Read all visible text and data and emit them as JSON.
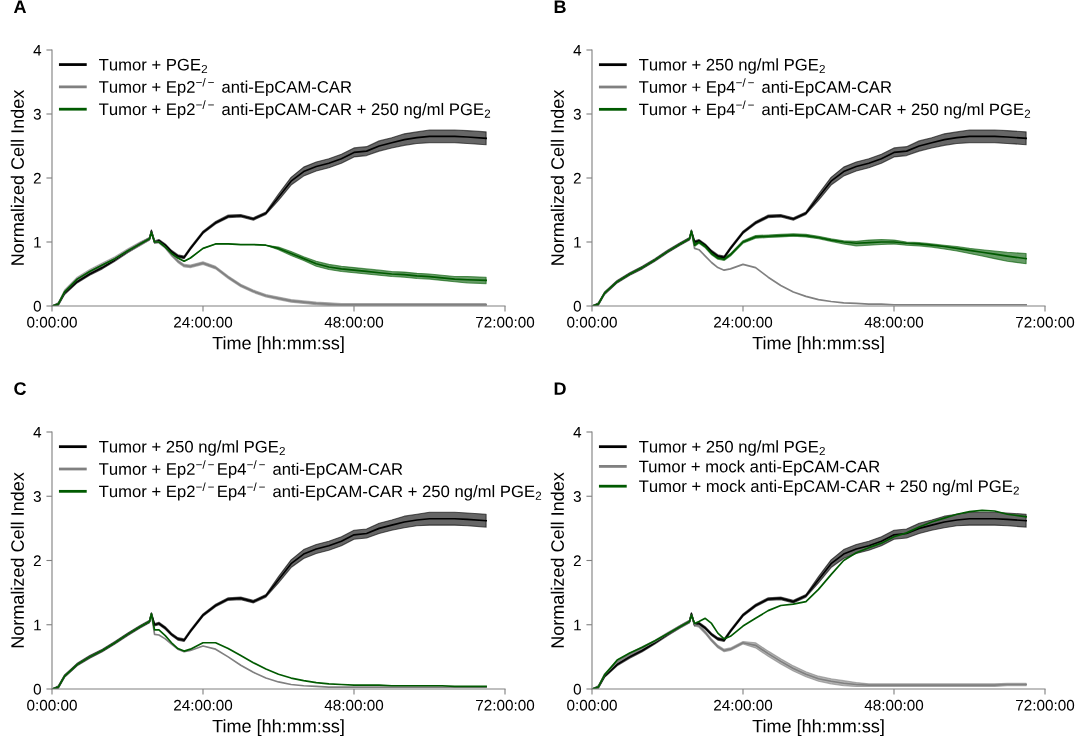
{
  "chart_data": [
    {
      "type": "line",
      "title": "A",
      "xlabel": "Time [hh:mm:ss]",
      "ylabel": "Normalized Cell Index",
      "legend": "top left",
      "x": [
        0,
        1,
        2,
        4,
        6,
        8,
        10,
        12,
        14,
        15.5,
        15.8,
        16.3,
        17,
        18,
        19,
        20,
        21,
        22,
        24,
        26,
        28,
        30,
        32,
        34,
        36,
        38,
        40,
        42,
        44,
        46,
        48,
        50,
        52,
        54,
        56,
        58,
        60,
        62,
        64,
        66,
        69
      ],
      "xlim": [
        0,
        72
      ],
      "xticks": [
        {
          "value": 0,
          "label": "0:00:00"
        },
        {
          "value": 24,
          "label": "24:00:00"
        },
        {
          "value": 48,
          "label": "48:00:00"
        },
        {
          "value": 72,
          "label": "72:00:00"
        }
      ],
      "ylim": [
        0,
        4
      ],
      "yticks": [
        0,
        1,
        2,
        3,
        4
      ],
      "series": [
        {
          "name": "Tumor + PGE$_{2}$",
          "color": "#000000",
          "values": [
            0,
            0.03,
            0.2,
            0.38,
            0.5,
            0.6,
            0.72,
            0.85,
            0.97,
            1.05,
            1.17,
            1.0,
            1.02,
            0.95,
            0.85,
            0.78,
            0.76,
            0.9,
            1.15,
            1.3,
            1.4,
            1.41,
            1.36,
            1.45,
            1.7,
            1.95,
            2.1,
            2.18,
            2.23,
            2.3,
            2.4,
            2.42,
            2.5,
            2.55,
            2.6,
            2.63,
            2.65,
            2.65,
            2.65,
            2.64,
            2.62
          ],
          "lower": [
            0,
            0.01,
            0.18,
            0.36,
            0.48,
            0.58,
            0.7,
            0.83,
            0.95,
            1.03,
            1.15,
            0.98,
            1.0,
            0.93,
            0.83,
            0.76,
            0.74,
            0.88,
            1.13,
            1.28,
            1.38,
            1.39,
            1.34,
            1.43,
            1.65,
            1.89,
            2.03,
            2.11,
            2.16,
            2.23,
            2.33,
            2.35,
            2.42,
            2.47,
            2.51,
            2.54,
            2.55,
            2.55,
            2.55,
            2.54,
            2.52
          ],
          "upper": [
            0,
            0.05,
            0.22,
            0.4,
            0.52,
            0.62,
            0.74,
            0.87,
            0.99,
            1.07,
            1.19,
            1.02,
            1.04,
            0.97,
            0.87,
            0.8,
            0.78,
            0.92,
            1.17,
            1.32,
            1.42,
            1.43,
            1.38,
            1.47,
            1.75,
            2.01,
            2.17,
            2.25,
            2.3,
            2.37,
            2.47,
            2.49,
            2.58,
            2.63,
            2.69,
            2.72,
            2.75,
            2.75,
            2.75,
            2.74,
            2.72
          ]
        },
        {
          "name": "Tumor + Ep2$^{−/−}$ anti-EpCAM-CAR",
          "color": "#808080",
          "values": [
            0,
            0.03,
            0.22,
            0.42,
            0.54,
            0.64,
            0.74,
            0.86,
            0.97,
            1.05,
            1.15,
            1.0,
            1.0,
            0.92,
            0.8,
            0.7,
            0.63,
            0.62,
            0.67,
            0.6,
            0.45,
            0.32,
            0.23,
            0.16,
            0.12,
            0.08,
            0.06,
            0.04,
            0.03,
            0.02,
            0.02,
            0.02,
            0.02,
            0.02,
            0.02,
            0.02,
            0.02,
            0.02,
            0.02,
            0.02,
            0.02
          ],
          "lower": [
            0,
            0.01,
            0.19,
            0.39,
            0.51,
            0.61,
            0.71,
            0.83,
            0.94,
            1.03,
            1.13,
            0.98,
            0.98,
            0.9,
            0.78,
            0.68,
            0.61,
            0.6,
            0.65,
            0.58,
            0.43,
            0.3,
            0.21,
            0.14,
            0.1,
            0.06,
            0.04,
            0.02,
            0.01,
            0.01,
            0.01,
            0.01,
            0.01,
            0.01,
            0.01,
            0.01,
            0.01,
            0.01,
            0.01,
            0.01,
            0.01
          ],
          "upper": [
            0,
            0.05,
            0.25,
            0.45,
            0.57,
            0.67,
            0.77,
            0.89,
            1.0,
            1.07,
            1.17,
            1.02,
            1.02,
            0.94,
            0.82,
            0.72,
            0.65,
            0.64,
            0.69,
            0.62,
            0.47,
            0.34,
            0.25,
            0.18,
            0.14,
            0.1,
            0.08,
            0.06,
            0.05,
            0.04,
            0.04,
            0.04,
            0.04,
            0.04,
            0.04,
            0.04,
            0.04,
            0.04,
            0.04,
            0.04,
            0.04
          ]
        },
        {
          "name": "Tumor + Ep2$^{−/−}$ anti-EpCAM-CAR + 250 ng/ml PGE$_{2}$",
          "color": "#005a00",
          "values": [
            0,
            0.03,
            0.22,
            0.42,
            0.54,
            0.64,
            0.74,
            0.86,
            0.97,
            1.05,
            1.15,
            1.0,
            1.0,
            0.92,
            0.82,
            0.75,
            0.7,
            0.75,
            0.9,
            0.97,
            0.97,
            0.96,
            0.96,
            0.95,
            0.9,
            0.82,
            0.74,
            0.66,
            0.61,
            0.58,
            0.56,
            0.54,
            0.52,
            0.5,
            0.49,
            0.47,
            0.46,
            0.44,
            0.42,
            0.41,
            0.4
          ],
          "lower": [
            0,
            0.03,
            0.22,
            0.42,
            0.54,
            0.64,
            0.74,
            0.86,
            0.97,
            1.05,
            1.15,
            1.0,
            1.0,
            0.92,
            0.82,
            0.75,
            0.7,
            0.75,
            0.9,
            0.97,
            0.97,
            0.96,
            0.96,
            0.95,
            0.88,
            0.79,
            0.71,
            0.62,
            0.57,
            0.54,
            0.52,
            0.5,
            0.48,
            0.46,
            0.45,
            0.43,
            0.42,
            0.4,
            0.38,
            0.36,
            0.35
          ],
          "upper": [
            0,
            0.03,
            0.22,
            0.42,
            0.54,
            0.64,
            0.74,
            0.86,
            0.97,
            1.05,
            1.15,
            1.0,
            1.0,
            0.92,
            0.82,
            0.75,
            0.7,
            0.75,
            0.9,
            0.97,
            0.97,
            0.96,
            0.96,
            0.95,
            0.92,
            0.85,
            0.77,
            0.7,
            0.65,
            0.62,
            0.6,
            0.58,
            0.56,
            0.54,
            0.53,
            0.51,
            0.5,
            0.48,
            0.46,
            0.46,
            0.45
          ]
        }
      ]
    },
    {
      "type": "line",
      "title": "B",
      "xlabel": "Time [hh:mm:ss]",
      "ylabel": "Normalized Cell Index",
      "legend": "top left",
      "x": [
        0,
        1,
        2,
        4,
        6,
        8,
        10,
        12,
        14,
        15.5,
        15.8,
        16.3,
        17,
        18,
        19,
        20,
        21,
        22,
        24,
        26,
        28,
        30,
        32,
        34,
        36,
        38,
        40,
        42,
        44,
        46,
        48,
        50,
        52,
        54,
        56,
        58,
        60,
        62,
        64,
        66,
        69
      ],
      "xlim": [
        0,
        72
      ],
      "xticks": [
        {
          "value": 0,
          "label": "0:00:00"
        },
        {
          "value": 24,
          "label": "24:00:00"
        },
        {
          "value": 48,
          "label": "48:00:00"
        },
        {
          "value": 72,
          "label": "72:00:00"
        }
      ],
      "ylim": [
        0,
        4
      ],
      "yticks": [
        0,
        1,
        2,
        3,
        4
      ],
      "series": [
        {
          "name": "Tumor + 250 ng/ml PGE$_{2}$",
          "color": "#000000",
          "values": [
            0,
            0.03,
            0.2,
            0.38,
            0.5,
            0.6,
            0.72,
            0.85,
            0.97,
            1.05,
            1.17,
            1.0,
            1.02,
            0.95,
            0.85,
            0.78,
            0.76,
            0.9,
            1.15,
            1.3,
            1.4,
            1.41,
            1.36,
            1.45,
            1.7,
            1.95,
            2.1,
            2.18,
            2.23,
            2.3,
            2.4,
            2.42,
            2.5,
            2.55,
            2.6,
            2.63,
            2.65,
            2.65,
            2.65,
            2.64,
            2.62
          ],
          "lower": [
            0,
            0.01,
            0.18,
            0.36,
            0.48,
            0.58,
            0.7,
            0.83,
            0.95,
            1.03,
            1.15,
            0.98,
            1.0,
            0.93,
            0.83,
            0.76,
            0.74,
            0.88,
            1.13,
            1.28,
            1.38,
            1.39,
            1.34,
            1.43,
            1.65,
            1.89,
            2.03,
            2.11,
            2.16,
            2.23,
            2.33,
            2.35,
            2.42,
            2.47,
            2.51,
            2.54,
            2.55,
            2.55,
            2.55,
            2.54,
            2.52
          ],
          "upper": [
            0,
            0.05,
            0.22,
            0.4,
            0.52,
            0.62,
            0.74,
            0.87,
            0.99,
            1.07,
            1.19,
            1.02,
            1.04,
            0.97,
            0.87,
            0.8,
            0.78,
            0.92,
            1.17,
            1.32,
            1.42,
            1.43,
            1.38,
            1.47,
            1.75,
            2.01,
            2.17,
            2.25,
            2.3,
            2.37,
            2.47,
            2.49,
            2.58,
            2.63,
            2.69,
            2.72,
            2.75,
            2.75,
            2.75,
            2.74,
            2.72
          ]
        },
        {
          "name": "Tumor + Ep4$^{−/−}$ anti-EpCAM-CAR",
          "color": "#808080",
          "values": [
            0,
            0.03,
            0.2,
            0.38,
            0.5,
            0.6,
            0.72,
            0.85,
            0.97,
            1.05,
            1.17,
            0.9,
            0.88,
            0.78,
            0.68,
            0.6,
            0.56,
            0.58,
            0.65,
            0.6,
            0.45,
            0.32,
            0.22,
            0.15,
            0.1,
            0.07,
            0.05,
            0.04,
            0.03,
            0.03,
            0.02,
            0.02,
            0.02,
            0.02,
            0.02,
            0.02,
            0.02,
            0.02,
            0.02,
            0.02,
            0.02
          ]
        },
        {
          "name": "Tumor + Ep4$^{−/−}$ anti-EpCAM-CAR + 250 ng/ml PGE$_{2}$",
          "color": "#005a00",
          "values": [
            0,
            0.03,
            0.2,
            0.38,
            0.5,
            0.6,
            0.72,
            0.85,
            0.97,
            1.05,
            1.17,
            0.95,
            1.0,
            0.93,
            0.82,
            0.75,
            0.73,
            0.8,
            1.0,
            1.08,
            1.09,
            1.1,
            1.11,
            1.1,
            1.07,
            1.03,
            1.0,
            0.98,
            0.99,
            1.0,
            1.0,
            0.98,
            0.97,
            0.95,
            0.93,
            0.9,
            0.87,
            0.84,
            0.81,
            0.78,
            0.74
          ],
          "lower": [
            0,
            0.03,
            0.2,
            0.38,
            0.5,
            0.6,
            0.72,
            0.85,
            0.97,
            1.05,
            1.17,
            0.93,
            0.98,
            0.91,
            0.8,
            0.73,
            0.71,
            0.78,
            0.98,
            1.06,
            1.07,
            1.08,
            1.09,
            1.08,
            1.05,
            1.01,
            0.97,
            0.94,
            0.95,
            0.96,
            0.97,
            0.95,
            0.94,
            0.92,
            0.89,
            0.86,
            0.82,
            0.78,
            0.74,
            0.7,
            0.66
          ],
          "upper": [
            0,
            0.03,
            0.2,
            0.38,
            0.5,
            0.6,
            0.72,
            0.85,
            0.97,
            1.05,
            1.17,
            0.97,
            1.02,
            0.95,
            0.84,
            0.77,
            0.75,
            0.82,
            1.02,
            1.1,
            1.11,
            1.12,
            1.13,
            1.12,
            1.09,
            1.05,
            1.02,
            1.01,
            1.03,
            1.04,
            1.03,
            1.0,
            0.99,
            0.97,
            0.95,
            0.93,
            0.9,
            0.88,
            0.86,
            0.84,
            0.82
          ]
        }
      ]
    },
    {
      "type": "line",
      "title": "C",
      "xlabel": "Time [hh:mm:ss]",
      "ylabel": "Normalized Cell Index",
      "legend": "top left",
      "x": [
        0,
        1,
        2,
        4,
        6,
        8,
        10,
        12,
        14,
        15.5,
        15.8,
        16.3,
        17,
        18,
        19,
        20,
        21,
        22,
        24,
        26,
        28,
        30,
        32,
        34,
        36,
        38,
        40,
        42,
        44,
        46,
        48,
        50,
        52,
        54,
        56,
        58,
        60,
        62,
        64,
        66,
        69
      ],
      "xlim": [
        0,
        72
      ],
      "xticks": [
        {
          "value": 0,
          "label": "0:00:00"
        },
        {
          "value": 24,
          "label": "24:00:00"
        },
        {
          "value": 48,
          "label": "48:00:00"
        },
        {
          "value": 72,
          "label": "72:00:00"
        }
      ],
      "ylim": [
        0,
        4
      ],
      "yticks": [
        0,
        1,
        2,
        3,
        4
      ],
      "series": [
        {
          "name": "Tumor + 250 ng/ml PGE$_{2}$",
          "color": "#000000",
          "values": [
            0,
            0.03,
            0.2,
            0.38,
            0.5,
            0.6,
            0.72,
            0.85,
            0.97,
            1.05,
            1.17,
            1.0,
            1.02,
            0.95,
            0.85,
            0.78,
            0.76,
            0.9,
            1.15,
            1.3,
            1.4,
            1.41,
            1.36,
            1.45,
            1.7,
            1.95,
            2.1,
            2.18,
            2.23,
            2.3,
            2.4,
            2.42,
            2.5,
            2.55,
            2.6,
            2.63,
            2.65,
            2.65,
            2.65,
            2.64,
            2.62
          ],
          "lower": [
            0,
            0.01,
            0.18,
            0.36,
            0.48,
            0.58,
            0.7,
            0.83,
            0.95,
            1.03,
            1.15,
            0.98,
            1.0,
            0.93,
            0.83,
            0.76,
            0.74,
            0.88,
            1.13,
            1.28,
            1.38,
            1.39,
            1.34,
            1.43,
            1.65,
            1.89,
            2.03,
            2.11,
            2.16,
            2.23,
            2.33,
            2.35,
            2.42,
            2.47,
            2.51,
            2.54,
            2.55,
            2.55,
            2.55,
            2.54,
            2.52
          ],
          "upper": [
            0,
            0.05,
            0.22,
            0.4,
            0.52,
            0.62,
            0.74,
            0.87,
            0.99,
            1.07,
            1.19,
            1.02,
            1.04,
            0.97,
            0.87,
            0.8,
            0.78,
            0.92,
            1.17,
            1.32,
            1.42,
            1.43,
            1.38,
            1.47,
            1.75,
            2.01,
            2.17,
            2.25,
            2.3,
            2.37,
            2.47,
            2.49,
            2.58,
            2.63,
            2.69,
            2.72,
            2.75,
            2.75,
            2.75,
            2.74,
            2.72
          ]
        },
        {
          "name": "Tumor + Ep2$^{−/−}$Ep4$^{−/−}$ anti-EpCAM-CAR",
          "color": "#808080",
          "values": [
            0,
            0.03,
            0.2,
            0.38,
            0.5,
            0.6,
            0.72,
            0.85,
            0.97,
            1.05,
            1.17,
            0.85,
            0.84,
            0.78,
            0.7,
            0.62,
            0.58,
            0.6,
            0.67,
            0.62,
            0.5,
            0.37,
            0.26,
            0.17,
            0.11,
            0.07,
            0.05,
            0.04,
            0.03,
            0.03,
            0.03,
            0.03,
            0.03,
            0.03,
            0.03,
            0.03,
            0.03,
            0.03,
            0.03,
            0.03,
            0.03
          ]
        },
        {
          "name": "Tumor + Ep2$^{−/−}$Ep4$^{−/−}$ anti-EpCAM-CAR + 250 ng/ml PGE$_{2}$",
          "color": "#005a00",
          "values": [
            0,
            0.03,
            0.2,
            0.38,
            0.5,
            0.6,
            0.72,
            0.85,
            0.97,
            1.05,
            1.17,
            0.92,
            0.92,
            0.83,
            0.72,
            0.63,
            0.59,
            0.62,
            0.72,
            0.72,
            0.63,
            0.52,
            0.41,
            0.31,
            0.23,
            0.17,
            0.13,
            0.1,
            0.08,
            0.07,
            0.06,
            0.06,
            0.06,
            0.05,
            0.05,
            0.05,
            0.05,
            0.05,
            0.04,
            0.04,
            0.04
          ]
        }
      ]
    },
    {
      "type": "line",
      "title": "D",
      "xlabel": "Time [hh:mm:ss]",
      "ylabel": "Normalized Cell Index",
      "legend": "top left",
      "x": [
        0,
        1,
        2,
        4,
        6,
        8,
        10,
        12,
        14,
        15.5,
        15.8,
        16.3,
        17,
        18,
        19,
        20,
        21,
        22,
        24,
        26,
        28,
        30,
        32,
        34,
        36,
        38,
        40,
        42,
        44,
        46,
        48,
        50,
        52,
        54,
        56,
        58,
        60,
        62,
        64,
        66,
        69
      ],
      "xlim": [
        0,
        72
      ],
      "xticks": [
        {
          "value": 0,
          "label": "0:00:00"
        },
        {
          "value": 24,
          "label": "24:00:00"
        },
        {
          "value": 48,
          "label": "48:00:00"
        },
        {
          "value": 72,
          "label": "72:00:00"
        }
      ],
      "ylim": [
        0,
        4
      ],
      "yticks": [
        0,
        1,
        2,
        3,
        4
      ],
      "series": [
        {
          "name": "Tumor + 250 ng/ml PGE$_{2}$",
          "color": "#000000",
          "values": [
            0,
            0.03,
            0.2,
            0.38,
            0.5,
            0.6,
            0.72,
            0.85,
            0.97,
            1.05,
            1.17,
            1.0,
            1.02,
            0.95,
            0.85,
            0.78,
            0.76,
            0.9,
            1.15,
            1.3,
            1.4,
            1.41,
            1.36,
            1.45,
            1.7,
            1.95,
            2.1,
            2.18,
            2.23,
            2.3,
            2.4,
            2.42,
            2.5,
            2.55,
            2.6,
            2.63,
            2.65,
            2.65,
            2.65,
            2.64,
            2.62
          ],
          "lower": [
            0,
            0.01,
            0.18,
            0.36,
            0.48,
            0.58,
            0.7,
            0.83,
            0.95,
            1.03,
            1.15,
            0.98,
            1.0,
            0.93,
            0.83,
            0.76,
            0.74,
            0.88,
            1.13,
            1.28,
            1.38,
            1.39,
            1.34,
            1.43,
            1.65,
            1.89,
            2.03,
            2.11,
            2.16,
            2.23,
            2.33,
            2.35,
            2.42,
            2.47,
            2.51,
            2.54,
            2.55,
            2.55,
            2.55,
            2.54,
            2.52
          ],
          "upper": [
            0,
            0.05,
            0.22,
            0.4,
            0.52,
            0.62,
            0.74,
            0.87,
            0.99,
            1.07,
            1.19,
            1.02,
            1.04,
            0.97,
            0.87,
            0.8,
            0.78,
            0.92,
            1.17,
            1.32,
            1.42,
            1.43,
            1.38,
            1.47,
            1.75,
            2.01,
            2.17,
            2.25,
            2.3,
            2.37,
            2.47,
            2.49,
            2.58,
            2.63,
            2.69,
            2.72,
            2.75,
            2.75,
            2.75,
            2.74,
            2.72
          ]
        },
        {
          "name": "Tumor + mock anti-EpCAM-CAR",
          "color": "#808080",
          "values": [
            0,
            0.03,
            0.22,
            0.42,
            0.54,
            0.64,
            0.74,
            0.86,
            0.97,
            1.05,
            1.15,
            1.0,
            0.98,
            0.88,
            0.76,
            0.66,
            0.6,
            0.62,
            0.72,
            0.68,
            0.55,
            0.43,
            0.32,
            0.23,
            0.16,
            0.12,
            0.09,
            0.07,
            0.06,
            0.06,
            0.06,
            0.06,
            0.06,
            0.06,
            0.06,
            0.06,
            0.06,
            0.06,
            0.06,
            0.07,
            0.07
          ],
          "lower": [
            0,
            0.01,
            0.2,
            0.4,
            0.52,
            0.62,
            0.72,
            0.84,
            0.95,
            1.03,
            1.13,
            0.98,
            0.96,
            0.86,
            0.74,
            0.64,
            0.58,
            0.6,
            0.7,
            0.64,
            0.51,
            0.39,
            0.28,
            0.19,
            0.12,
            0.08,
            0.05,
            0.04,
            0.04,
            0.04,
            0.04,
            0.04,
            0.04,
            0.04,
            0.04,
            0.04,
            0.04,
            0.04,
            0.04,
            0.05,
            0.05
          ],
          "upper": [
            0,
            0.05,
            0.24,
            0.44,
            0.56,
            0.66,
            0.76,
            0.88,
            0.99,
            1.07,
            1.17,
            1.02,
            1.0,
            0.9,
            0.78,
            0.68,
            0.62,
            0.64,
            0.74,
            0.72,
            0.59,
            0.47,
            0.36,
            0.27,
            0.2,
            0.16,
            0.13,
            0.1,
            0.08,
            0.08,
            0.08,
            0.08,
            0.08,
            0.08,
            0.08,
            0.08,
            0.08,
            0.08,
            0.08,
            0.09,
            0.09
          ]
        },
        {
          "name": "Tumor + mock anti-EpCAM-CAR + 250 ng/ml PGE$_{2}$",
          "color": "#005a00",
          "values": [
            0,
            0.03,
            0.22,
            0.45,
            0.56,
            0.65,
            0.75,
            0.86,
            0.97,
            1.05,
            1.15,
            1.02,
            1.05,
            1.1,
            1.02,
            0.87,
            0.78,
            0.82,
            0.98,
            1.1,
            1.22,
            1.3,
            1.32,
            1.36,
            1.55,
            1.78,
            2.0,
            2.12,
            2.2,
            2.27,
            2.37,
            2.43,
            2.52,
            2.6,
            2.66,
            2.72,
            2.76,
            2.78,
            2.77,
            2.72,
            2.68
          ]
        }
      ]
    }
  ]
}
